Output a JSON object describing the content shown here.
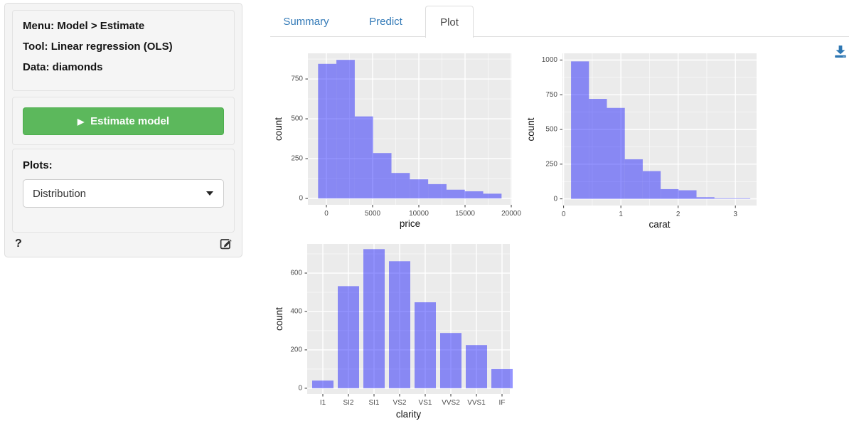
{
  "sidebar": {
    "info": {
      "menu": "Menu: Model > Estimate",
      "tool": "Tool: Linear regression (OLS)",
      "data": "Data: diamonds"
    },
    "estimate_button": {
      "label": "Estimate model"
    },
    "plots": {
      "label": "Plots:",
      "selected": "Distribution"
    },
    "help_label": "?"
  },
  "tabs": [
    {
      "label": "Summary",
      "active": false
    },
    {
      "label": "Predict",
      "active": false
    },
    {
      "label": "Plot",
      "active": true
    }
  ],
  "icons": {
    "play": "▶",
    "chevron_down": "caret-down-icon",
    "download": "download-icon",
    "edit": "edit-icon",
    "help": "question-mark-icon"
  },
  "colors": {
    "button_green": "#5cb85c",
    "button_green_border": "#4cae4c",
    "link_blue": "#337ab7",
    "download_blue": "#2e77b3",
    "panel_bg": "#ebebeb",
    "grid_major": "#ffffff",
    "grid_minor": "rgba(255,255,255,0.7)",
    "bar_fill": "rgba(0,0,255,0.42)",
    "tick_label": "#4d4d4d",
    "axis_title": "#111111"
  },
  "chart_data": [
    {
      "id": "price-histogram",
      "type": "bar",
      "subtype": "histogram",
      "title": "",
      "xlabel": "price",
      "ylabel": "count",
      "bin_start": -900,
      "bin_width": 1985,
      "counts": [
        845,
        870,
        515,
        285,
        160,
        120,
        90,
        55,
        45,
        30
      ],
      "x_ticks": [
        0,
        5000,
        10000,
        15000,
        20000
      ],
      "y_ticks": [
        0,
        250,
        500,
        750
      ],
      "x_minor": [
        2500,
        7500,
        12500,
        17500
      ],
      "y_minor": [
        125,
        375,
        625,
        875
      ],
      "xlim": [
        -2000,
        20077
      ],
      "ylim": [
        -40,
        911
      ],
      "grid": true,
      "legend": false
    },
    {
      "id": "carat-histogram",
      "type": "bar",
      "subtype": "histogram",
      "title": "",
      "xlabel": "carat",
      "ylabel": "count",
      "bin_start": 0.13,
      "bin_width": 0.313,
      "counts": [
        990,
        720,
        655,
        285,
        200,
        70,
        62,
        12,
        4,
        4
      ],
      "x_ticks": [
        0,
        1,
        2,
        3
      ],
      "y_ticks": [
        0,
        250,
        500,
        750,
        1000
      ],
      "x_minor": [
        0.5,
        1.5,
        2.5
      ],
      "y_minor": [
        125,
        375,
        625,
        875
      ],
      "xlim": [
        -0.02,
        3.37
      ],
      "ylim": [
        -48,
        1048
      ],
      "grid": true,
      "legend": false
    },
    {
      "id": "clarity-bar",
      "type": "bar",
      "subtype": "categorical",
      "title": "",
      "xlabel": "clarity",
      "ylabel": "count",
      "categories": [
        "I1",
        "SI2",
        "SI1",
        "VS2",
        "VS1",
        "VVS2",
        "VVS1",
        "IF"
      ],
      "values": [
        40,
        532,
        725,
        662,
        448,
        288,
        225,
        100
      ],
      "y_ticks": [
        0,
        200,
        400,
        600
      ],
      "y_minor": [
        100,
        300,
        500,
        700
      ],
      "ylim": [
        -30,
        752
      ],
      "grid": true,
      "legend": false
    }
  ]
}
